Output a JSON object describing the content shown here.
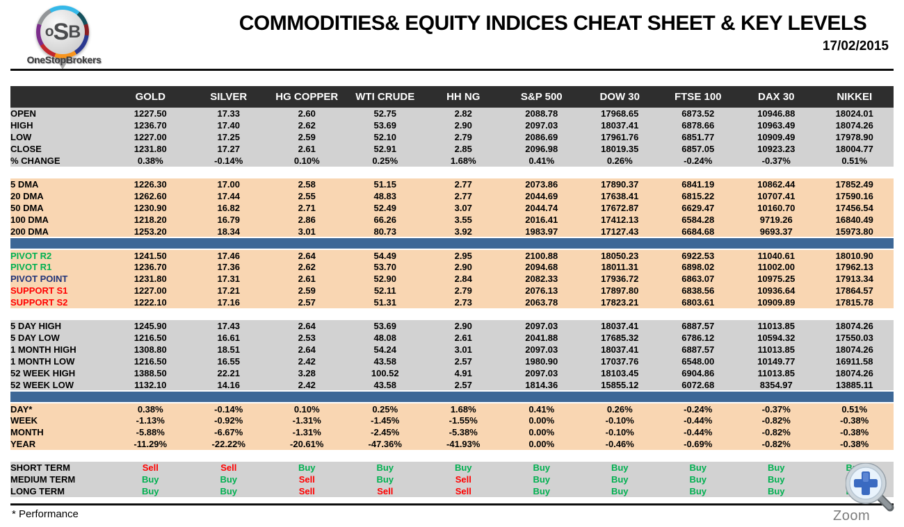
{
  "meta": {
    "title": "COMMODITIES& EQUITY INDICES CHEAT SHEET & KEY LEVELS",
    "date": "17/02/2015",
    "footnote": "* Performance",
    "zoom_label": "Zoom"
  },
  "logo": {
    "text": "OSB",
    "subtext": "OneStopBrokers"
  },
  "colors": {
    "header_bg": "#2e2e2e",
    "row_gray": "#d2d2d2",
    "row_peach": "#f9d6b2",
    "divider_blue": "#3d6796",
    "buy_green": "#00b050",
    "sell_red": "#ff0000",
    "pivot_green": "#00b050",
    "pivot_navy": "#1f3278",
    "support_red": "#ff0000"
  },
  "table": {
    "columns": [
      "GOLD",
      "SILVER",
      "HG COPPER",
      "WTI CRUDE",
      "HH NG",
      "S&P 500",
      "DOW 30",
      "FTSE 100",
      "DAX 30",
      "NIKKEI"
    ],
    "sections": [
      {
        "name": "ohlc",
        "bg": "gray",
        "gap_before": false,
        "rows": [
          {
            "label": "OPEN",
            "values": [
              "1227.50",
              "17.33",
              "2.60",
              "52.75",
              "2.82",
              "2088.78",
              "17968.65",
              "6873.52",
              "10946.88",
              "18024.01"
            ]
          },
          {
            "label": "HIGH",
            "values": [
              "1236.70",
              "17.40",
              "2.62",
              "53.69",
              "2.90",
              "2097.03",
              "18037.41",
              "6878.66",
              "10963.49",
              "18074.26"
            ]
          },
          {
            "label": "LOW",
            "values": [
              "1227.00",
              "17.25",
              "2.59",
              "52.10",
              "2.79",
              "2086.69",
              "17961.76",
              "6851.77",
              "10909.49",
              "17978.90"
            ]
          },
          {
            "label": "CLOSE",
            "values": [
              "1231.80",
              "17.27",
              "2.61",
              "52.91",
              "2.85",
              "2096.98",
              "18019.35",
              "6857.05",
              "10923.23",
              "18004.77"
            ]
          },
          {
            "label": "% CHANGE",
            "values": [
              "0.38%",
              "-0.14%",
              "0.10%",
              "0.25%",
              "1.68%",
              "0.41%",
              "0.26%",
              "-0.24%",
              "-0.37%",
              "0.51%"
            ]
          }
        ]
      },
      {
        "name": "dma",
        "bg": "peach",
        "gap_before": true,
        "rows": [
          {
            "label": "5 DMA",
            "values": [
              "1226.30",
              "17.00",
              "2.58",
              "51.15",
              "2.77",
              "2073.86",
              "17890.37",
              "6841.19",
              "10862.44",
              "17852.49"
            ]
          },
          {
            "label": "20 DMA",
            "values": [
              "1262.60",
              "17.44",
              "2.55",
              "48.83",
              "2.77",
              "2044.69",
              "17638.41",
              "6815.22",
              "10707.41",
              "17590.16"
            ]
          },
          {
            "label": "50 DMA",
            "values": [
              "1230.90",
              "16.82",
              "2.71",
              "52.49",
              "3.07",
              "2044.74",
              "17672.87",
              "6629.47",
              "10160.70",
              "17456.54"
            ]
          },
          {
            "label": "100 DMA",
            "values": [
              "1218.20",
              "16.79",
              "2.86",
              "66.26",
              "3.55",
              "2016.41",
              "17412.13",
              "6584.28",
              "9719.26",
              "16840.49"
            ]
          },
          {
            "label": "200 DMA",
            "values": [
              "1253.20",
              "18.34",
              "3.01",
              "80.73",
              "3.92",
              "1983.97",
              "17127.43",
              "6684.68",
              "9693.37",
              "15973.80"
            ]
          }
        ]
      },
      {
        "name": "divider-1",
        "type": "bar"
      },
      {
        "name": "pivots",
        "bg": "peach",
        "gap_before": false,
        "rows": [
          {
            "label": "PIVOT R2",
            "label_color": "#00b050",
            "values": [
              "1241.50",
              "17.46",
              "2.64",
              "54.49",
              "2.95",
              "2100.88",
              "18050.23",
              "6922.53",
              "11040.61",
              "18010.90"
            ]
          },
          {
            "label": "PIVOT R1",
            "label_color": "#00b050",
            "values": [
              "1236.70",
              "17.36",
              "2.62",
              "53.70",
              "2.90",
              "2094.68",
              "18011.31",
              "6898.02",
              "11002.00",
              "17962.13"
            ]
          },
          {
            "label": "PIVOT POINT",
            "label_color": "#1f3278",
            "values": [
              "1231.80",
              "17.31",
              "2.61",
              "52.90",
              "2.84",
              "2082.33",
              "17936.72",
              "6863.07",
              "10975.25",
              "17913.34"
            ]
          },
          {
            "label": "SUPPORT S1",
            "label_color": "#ff0000",
            "values": [
              "1227.00",
              "17.21",
              "2.59",
              "52.11",
              "2.79",
              "2076.13",
              "17897.80",
              "6838.56",
              "10936.64",
              "17864.57"
            ]
          },
          {
            "label": "SUPPORT S2",
            "label_color": "#ff0000",
            "values": [
              "1222.10",
              "17.16",
              "2.57",
              "51.31",
              "2.73",
              "2063.78",
              "17823.21",
              "6803.61",
              "10909.89",
              "17815.78"
            ]
          }
        ]
      },
      {
        "name": "ranges",
        "bg": "gray",
        "gap_before": true,
        "rows": [
          {
            "label": "5 DAY HIGH",
            "values": [
              "1245.90",
              "17.43",
              "2.64",
              "53.69",
              "2.90",
              "2097.03",
              "18037.41",
              "6887.57",
              "11013.85",
              "18074.26"
            ]
          },
          {
            "label": "5 DAY LOW",
            "values": [
              "1216.50",
              "16.61",
              "2.53",
              "48.08",
              "2.61",
              "2041.88",
              "17685.32",
              "6786.12",
              "10594.32",
              "17550.03"
            ]
          },
          {
            "label": "1 MONTH HIGH",
            "values": [
              "1308.80",
              "18.51",
              "2.64",
              "54.24",
              "3.01",
              "2097.03",
              "18037.41",
              "6887.57",
              "11013.85",
              "18074.26"
            ]
          },
          {
            "label": "1 MONTH LOW",
            "values": [
              "1216.50",
              "16.55",
              "2.42",
              "43.58",
              "2.57",
              "1980.90",
              "17037.76",
              "6548.00",
              "10149.77",
              "16911.58"
            ]
          },
          {
            "label": "52 WEEK HIGH",
            "values": [
              "1388.50",
              "22.21",
              "3.28",
              "100.52",
              "4.91",
              "2097.03",
              "18103.45",
              "6904.86",
              "11013.85",
              "18074.26"
            ]
          },
          {
            "label": "52 WEEK LOW",
            "values": [
              "1132.10",
              "14.16",
              "2.42",
              "43.58",
              "2.57",
              "1814.36",
              "15855.12",
              "6072.68",
              "8354.97",
              "13885.11"
            ]
          }
        ]
      },
      {
        "name": "divider-2",
        "type": "bar"
      },
      {
        "name": "performance",
        "bg": "peach",
        "gap_before": false,
        "rows": [
          {
            "label": "DAY*",
            "values": [
              "0.38%",
              "-0.14%",
              "0.10%",
              "0.25%",
              "1.68%",
              "0.41%",
              "0.26%",
              "-0.24%",
              "-0.37%",
              "0.51%"
            ]
          },
          {
            "label": "WEEK",
            "values": [
              "-1.13%",
              "-0.92%",
              "-1.31%",
              "-1.45%",
              "-1.55%",
              "0.00%",
              "-0.10%",
              "-0.44%",
              "-0.82%",
              "-0.38%"
            ]
          },
          {
            "label": "MONTH",
            "values": [
              "-5.88%",
              "-6.67%",
              "-1.31%",
              "-2.45%",
              "-5.38%",
              "0.00%",
              "-0.10%",
              "-0.44%",
              "-0.82%",
              "-0.38%"
            ]
          },
          {
            "label": "YEAR",
            "values": [
              "-11.29%",
              "-22.22%",
              "-20.61%",
              "-47.36%",
              "-41.93%",
              "0.00%",
              "-0.46%",
              "-0.69%",
              "-0.82%",
              "-0.38%"
            ]
          }
        ]
      },
      {
        "name": "signals",
        "bg": "gray",
        "gap_before": true,
        "signal": true,
        "rows": [
          {
            "label": "SHORT TERM",
            "values": [
              "Sell",
              "Sell",
              "Buy",
              "Buy",
              "Buy",
              "Buy",
              "Buy",
              "Buy",
              "Buy",
              "Buy"
            ]
          },
          {
            "label": "MEDIUM TERM",
            "values": [
              "Buy",
              "Buy",
              "Sell",
              "Buy",
              "Sell",
              "Buy",
              "Buy",
              "Buy",
              "Buy",
              "Buy"
            ]
          },
          {
            "label": "LONG TERM",
            "values": [
              "Buy",
              "Buy",
              "Sell",
              "Sell",
              "Sell",
              "Buy",
              "Buy",
              "Buy",
              "Buy",
              "Buy"
            ]
          }
        ]
      }
    ]
  }
}
